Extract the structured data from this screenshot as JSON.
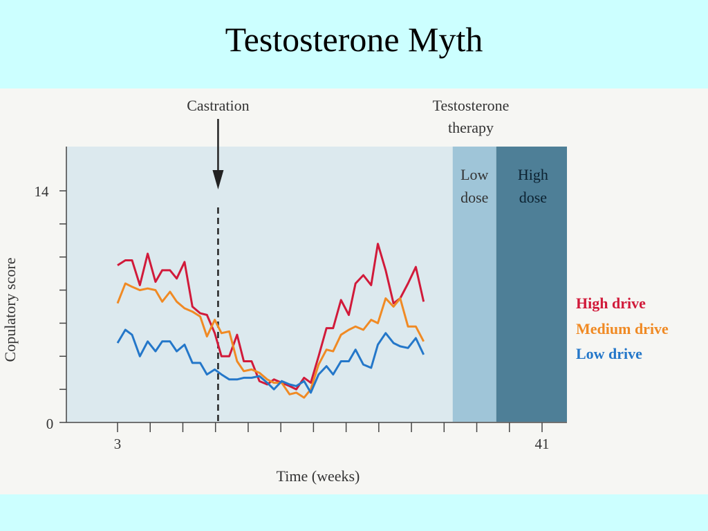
{
  "slide": {
    "title": "Testosterone Myth"
  },
  "chart_data": {
    "type": "line",
    "xlabel": "Time (weeks)",
    "ylabel": "Copulatory score",
    "xlim": [
      3,
      41
    ],
    "ylim": [
      0,
      14
    ],
    "x_tick_labels": [
      "3",
      "41"
    ],
    "y_tick_labels": [
      "0",
      "14"
    ],
    "grid": false,
    "legend_position": "right",
    "annotations": {
      "castration": {
        "label": "Castration",
        "week": 12
      },
      "therapy_label": "Testosterone therapy",
      "low_dose": {
        "label": "Low dose",
        "start_week": 33,
        "end_week": 36.9
      },
      "high_dose": {
        "label": "High dose",
        "start_week": 36.9,
        "end_week": 41.5
      }
    },
    "colors": {
      "background_pre": "#dce9ee",
      "band_low": "#9fc5d8",
      "band_high": "#4e7f97"
    },
    "series": [
      {
        "name": "High drive",
        "color": "#d11a3a",
        "points": [
          [
            3,
            9.5
          ],
          [
            3.7,
            9.8
          ],
          [
            4.3,
            9.8
          ],
          [
            5,
            8.3
          ],
          [
            5.7,
            10.2
          ],
          [
            6.4,
            8.5
          ],
          [
            7,
            9.2
          ],
          [
            7.7,
            9.2
          ],
          [
            8.3,
            8.7
          ],
          [
            9,
            9.7
          ],
          [
            9.7,
            7.0
          ],
          [
            10.4,
            6.6
          ],
          [
            11,
            6.5
          ],
          [
            11.7,
            5.4
          ],
          [
            12.3,
            4.0
          ],
          [
            13,
            4.0
          ],
          [
            13.7,
            5.3
          ],
          [
            14.3,
            3.7
          ],
          [
            15,
            3.7
          ],
          [
            15.7,
            2.5
          ],
          [
            16.4,
            2.3
          ],
          [
            17,
            2.6
          ],
          [
            17.7,
            2.4
          ],
          [
            18.4,
            2.2
          ],
          [
            19,
            2.0
          ],
          [
            19.7,
            2.7
          ],
          [
            20.3,
            2.4
          ],
          [
            21,
            4.0
          ],
          [
            21.7,
            5.7
          ],
          [
            22.3,
            5.7
          ],
          [
            23,
            7.4
          ],
          [
            23.7,
            6.5
          ],
          [
            24.3,
            8.4
          ],
          [
            25,
            8.9
          ],
          [
            25.7,
            8.3
          ],
          [
            26.3,
            10.8
          ],
          [
            27,
            9.2
          ],
          [
            27.7,
            7.2
          ],
          [
            28.3,
            7.5
          ],
          [
            29,
            8.4
          ],
          [
            29.7,
            9.4
          ],
          [
            30.4,
            7.3
          ]
        ]
      },
      {
        "name": "Medium drive",
        "color": "#f08a24",
        "points": [
          [
            3,
            7.2
          ],
          [
            3.7,
            8.4
          ],
          [
            4.3,
            8.2
          ],
          [
            5,
            8.0
          ],
          [
            5.7,
            8.1
          ],
          [
            6.4,
            8.0
          ],
          [
            7,
            7.3
          ],
          [
            7.7,
            7.9
          ],
          [
            8.3,
            7.3
          ],
          [
            9,
            6.9
          ],
          [
            9.7,
            6.7
          ],
          [
            10.4,
            6.4
          ],
          [
            11,
            5.2
          ],
          [
            11.7,
            6.2
          ],
          [
            12.3,
            5.4
          ],
          [
            13,
            5.5
          ],
          [
            13.7,
            3.7
          ],
          [
            14.3,
            3.1
          ],
          [
            15,
            3.2
          ],
          [
            15.7,
            3.0
          ],
          [
            16.4,
            2.6
          ],
          [
            17,
            2.4
          ],
          [
            17.7,
            2.4
          ],
          [
            18.4,
            1.7
          ],
          [
            19,
            1.8
          ],
          [
            19.7,
            1.5
          ],
          [
            20.3,
            2.0
          ],
          [
            21,
            3.5
          ],
          [
            21.7,
            4.4
          ],
          [
            22.3,
            4.3
          ],
          [
            23,
            5.3
          ],
          [
            23.7,
            5.6
          ],
          [
            24.3,
            5.8
          ],
          [
            25,
            5.6
          ],
          [
            25.7,
            6.2
          ],
          [
            26.3,
            6.0
          ],
          [
            27,
            7.5
          ],
          [
            27.7,
            7.0
          ],
          [
            28.3,
            7.5
          ],
          [
            29,
            5.8
          ],
          [
            29.7,
            5.8
          ],
          [
            30.4,
            4.9
          ]
        ]
      },
      {
        "name": "Low drive",
        "color": "#2477c9",
        "points": [
          [
            3,
            4.8
          ],
          [
            3.7,
            5.6
          ],
          [
            4.3,
            5.3
          ],
          [
            5,
            4.0
          ],
          [
            5.7,
            4.9
          ],
          [
            6.4,
            4.3
          ],
          [
            7,
            4.9
          ],
          [
            7.7,
            4.9
          ],
          [
            8.3,
            4.3
          ],
          [
            9,
            4.7
          ],
          [
            9.7,
            3.6
          ],
          [
            10.4,
            3.6
          ],
          [
            11,
            2.9
          ],
          [
            11.7,
            3.2
          ],
          [
            12.3,
            2.9
          ],
          [
            13,
            2.6
          ],
          [
            13.7,
            2.6
          ],
          [
            14.3,
            2.7
          ],
          [
            15,
            2.7
          ],
          [
            15.7,
            2.8
          ],
          [
            16.4,
            2.4
          ],
          [
            17,
            2.0
          ],
          [
            17.7,
            2.5
          ],
          [
            18.4,
            2.3
          ],
          [
            19,
            2.2
          ],
          [
            19.7,
            2.5
          ],
          [
            20.3,
            1.8
          ],
          [
            21,
            2.9
          ],
          [
            21.7,
            3.4
          ],
          [
            22.3,
            2.9
          ],
          [
            23,
            3.7
          ],
          [
            23.7,
            3.7
          ],
          [
            24.3,
            4.4
          ],
          [
            25,
            3.5
          ],
          [
            25.7,
            3.3
          ],
          [
            26.3,
            4.7
          ],
          [
            27,
            5.4
          ],
          [
            27.7,
            4.8
          ],
          [
            28.3,
            4.6
          ],
          [
            29,
            4.5
          ],
          [
            29.7,
            5.1
          ],
          [
            30.4,
            4.1
          ]
        ]
      }
    ]
  }
}
